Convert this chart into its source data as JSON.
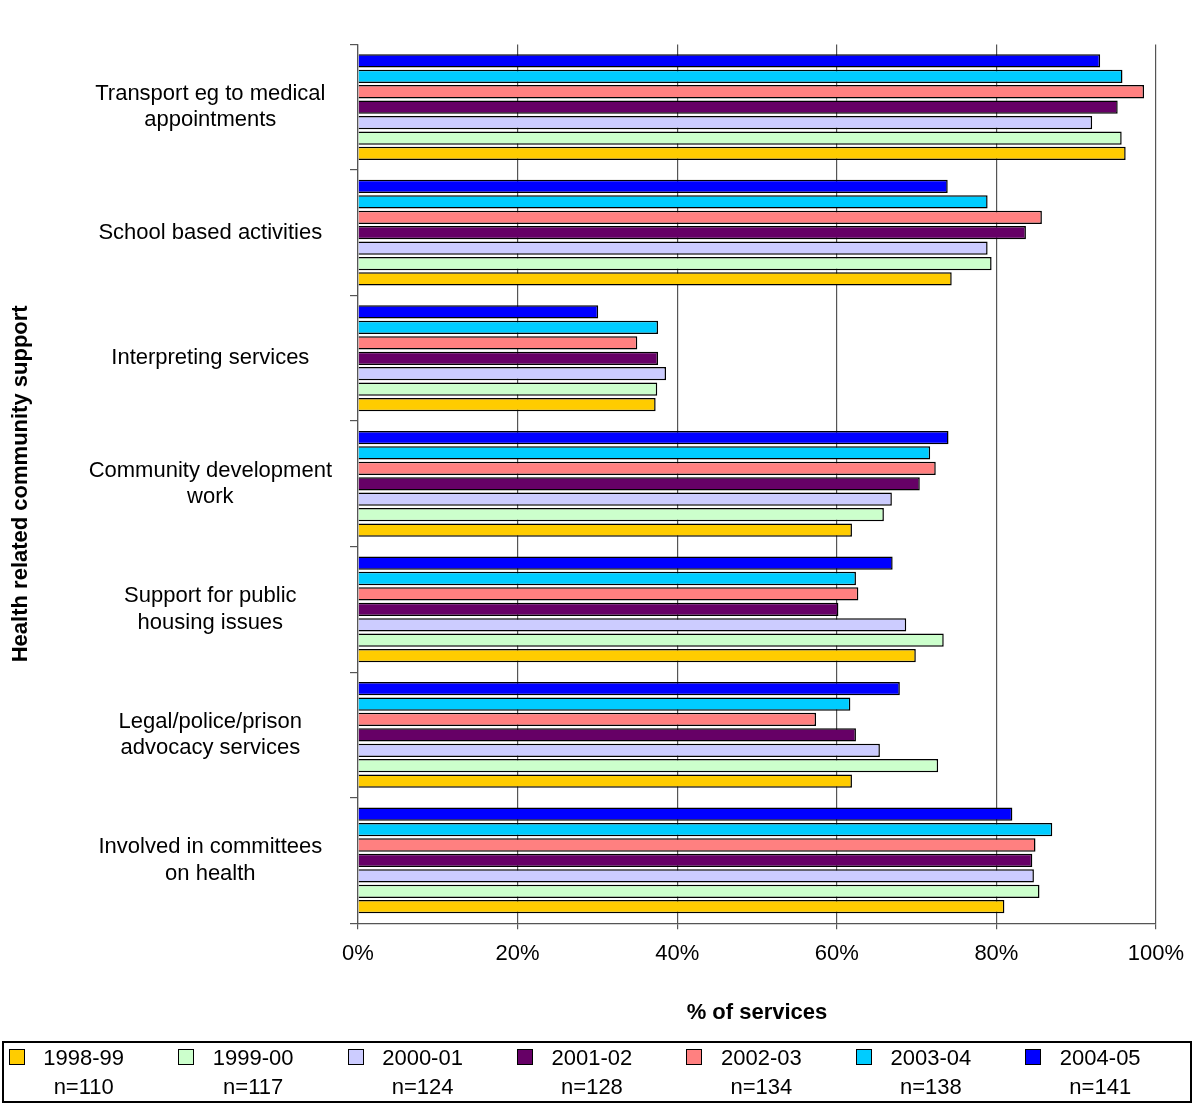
{
  "chart_data": {
    "type": "bar",
    "orientation": "horizontal",
    "ylabel": "Health related community support",
    "xlabel": "% of services",
    "categories": [
      "Transport eg to medical appointments",
      "School based activities",
      "Interpreting services",
      "Community development work",
      "Support for public housing issues",
      "Legal/police/prison advocacy services",
      "Involved in committees on health"
    ],
    "series": [
      {
        "name": "1998-99 n=110",
        "color": "#ffcc00",
        "values": [
          96.2,
          74.4,
          37.3,
          61.9,
          69.9,
          61.9,
          81.0
        ]
      },
      {
        "name": "1999-00 n=117",
        "color": "#ccffcc",
        "values": [
          95.7,
          79.4,
          37.5,
          65.9,
          73.4,
          72.7,
          85.4
        ]
      },
      {
        "name": "2000-01 n=124",
        "color": "#ccccff",
        "values": [
          92.0,
          78.9,
          38.6,
          66.9,
          68.7,
          65.4,
          84.7
        ]
      },
      {
        "name": "2001-02 n=128",
        "color": "#660066",
        "values": [
          95.2,
          83.7,
          37.6,
          70.4,
          60.2,
          62.4,
          84.5
        ]
      },
      {
        "name": "2002-03 n=134",
        "color": "#ff8080",
        "values": [
          98.5,
          85.7,
          35.0,
          72.4,
          62.7,
          57.4,
          84.9
        ]
      },
      {
        "name": "2003-04 n=138",
        "color": "#00ccff",
        "values": [
          95.8,
          78.9,
          37.6,
          71.7,
          62.4,
          61.7,
          87.0
        ]
      },
      {
        "name": "2004-05 n=141",
        "color": "#0000ff",
        "values": [
          93.0,
          73.9,
          30.1,
          74.0,
          67.0,
          67.9,
          82.0
        ]
      }
    ],
    "xlim": [
      0,
      100
    ],
    "xticks": [
      {
        "value": 0,
        "label": "0%"
      },
      {
        "value": 20,
        "label": "20%"
      },
      {
        "value": 40,
        "label": "40%"
      },
      {
        "value": 60,
        "label": "60%"
      },
      {
        "value": 80,
        "label": "80%"
      },
      {
        "value": 100,
        "label": "100%"
      }
    ],
    "grid": "x",
    "legend": "bottom"
  }
}
